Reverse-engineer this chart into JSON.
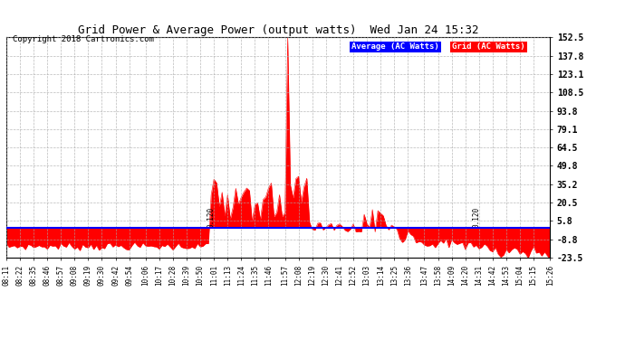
{
  "title": "Grid Power & Average Power (output watts)  Wed Jan 24 15:32",
  "copyright": "Copyright 2018 Cartronics.com",
  "legend_labels": [
    "Average (AC Watts)",
    "Grid (AC Watts)"
  ],
  "legend_colors": [
    "#0000ff",
    "#ff0000"
  ],
  "yticks": [
    152.5,
    137.8,
    123.1,
    108.5,
    93.8,
    79.1,
    64.5,
    49.8,
    35.2,
    20.5,
    5.8,
    -8.8,
    -23.5
  ],
  "ylim": [
    -23.5,
    152.5
  ],
  "avg_value": 0.12,
  "bg_color": "#ffffff",
  "plot_bg_color": "#ffffff",
  "red_color": "#ff0000",
  "blue_color": "#0000ff",
  "n_points": 200,
  "time_labels": [
    "08:11",
    "08:22",
    "08:35",
    "08:46",
    "08:57",
    "09:08",
    "09:19",
    "09:30",
    "09:42",
    "09:54",
    "10:06",
    "10:17",
    "10:28",
    "10:39",
    "10:50",
    "11:01",
    "11:13",
    "11:24",
    "11:35",
    "11:46",
    "11:57",
    "12:08",
    "12:19",
    "12:30",
    "12:41",
    "12:52",
    "13:03",
    "13:14",
    "13:25",
    "13:36",
    "13:47",
    "13:58",
    "14:09",
    "14:20",
    "14:31",
    "14:42",
    "14:53",
    "15:04",
    "15:15",
    "15:26"
  ]
}
